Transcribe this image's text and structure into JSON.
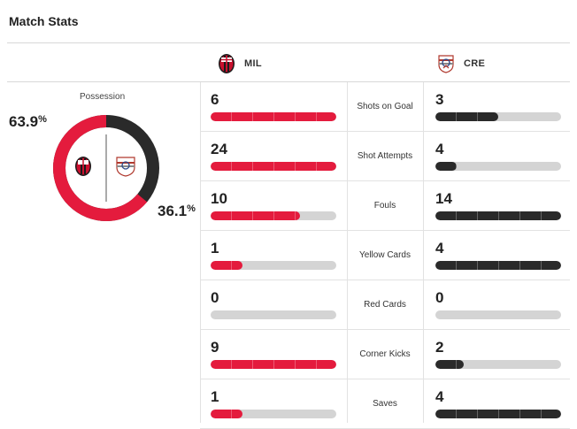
{
  "title": "Match Stats",
  "colors": {
    "home": "#e41b3d",
    "away": "#2a2a2a",
    "track": "#d4d4d4"
  },
  "teams": {
    "home": {
      "abbr": "MIL",
      "crest_icon": "ac-milan-crest-icon"
    },
    "away": {
      "abbr": "CRE",
      "crest_icon": "cremonese-crest-icon"
    }
  },
  "possession": {
    "label": "Possession",
    "home": {
      "value": 63.9,
      "number": "63.9",
      "unit": "%"
    },
    "away": {
      "value": 36.1,
      "number": "36.1",
      "unit": "%"
    }
  },
  "stats": [
    {
      "label": "Shots on Goal",
      "home": 6,
      "away": 3,
      "home_fill": 1.0,
      "away_fill": 0.5
    },
    {
      "label": "Shot Attempts",
      "home": 24,
      "away": 4,
      "home_fill": 1.0,
      "away_fill": 0.167
    },
    {
      "label": "Fouls",
      "home": 10,
      "away": 14,
      "home_fill": 0.714,
      "away_fill": 1.0
    },
    {
      "label": "Yellow Cards",
      "home": 1,
      "away": 4,
      "home_fill": 0.25,
      "away_fill": 1.0
    },
    {
      "label": "Red Cards",
      "home": 0,
      "away": 0,
      "home_fill": 0,
      "away_fill": 0
    },
    {
      "label": "Corner Kicks",
      "home": 9,
      "away": 2,
      "home_fill": 1.0,
      "away_fill": 0.222
    },
    {
      "label": "Saves",
      "home": 1,
      "away": 4,
      "home_fill": 0.25,
      "away_fill": 1.0
    }
  ]
}
